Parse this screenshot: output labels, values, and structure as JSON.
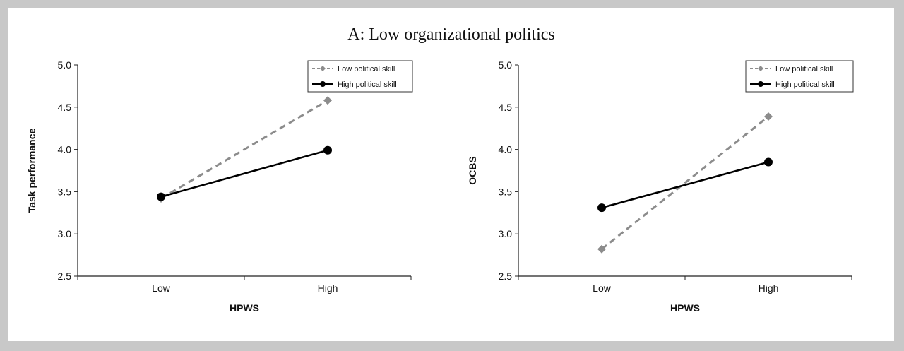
{
  "figure_title": "A: Low organizational politics",
  "colors": {
    "low_political_skill": "#8c8c8c",
    "high_political_skill": "#000000",
    "axis": "#222222"
  },
  "chart_data": [
    {
      "type": "line",
      "xlabel": "HPWS",
      "ylabel": "Task performance",
      "categories": [
        "Low",
        "High"
      ],
      "ylim": [
        2.5,
        5.0
      ],
      "yticks": [
        "5.0",
        "4.5",
        "4.0",
        "3.5",
        "3.0",
        "2.5"
      ],
      "grid": false,
      "legend_position": "top-right",
      "series": [
        {
          "name": "Low political skill",
          "values": [
            3.42,
            4.58
          ],
          "style": "dashed",
          "marker": "diamond"
        },
        {
          "name": "High political skill",
          "values": [
            3.44,
            3.99
          ],
          "style": "solid",
          "marker": "circle"
        }
      ]
    },
    {
      "type": "line",
      "xlabel": "HPWS",
      "ylabel": "OCBS",
      "categories": [
        "Low",
        "High"
      ],
      "ylim": [
        2.5,
        5.0
      ],
      "yticks": [
        "5.0",
        "4.5",
        "4.0",
        "3.5",
        "3.0",
        "2.5"
      ],
      "grid": false,
      "legend_position": "top-right",
      "series": [
        {
          "name": "Low political skill",
          "values": [
            2.82,
            4.39
          ],
          "style": "dashed",
          "marker": "diamond"
        },
        {
          "name": "High political skill",
          "values": [
            3.31,
            3.85
          ],
          "style": "solid",
          "marker": "circle"
        }
      ]
    }
  ]
}
